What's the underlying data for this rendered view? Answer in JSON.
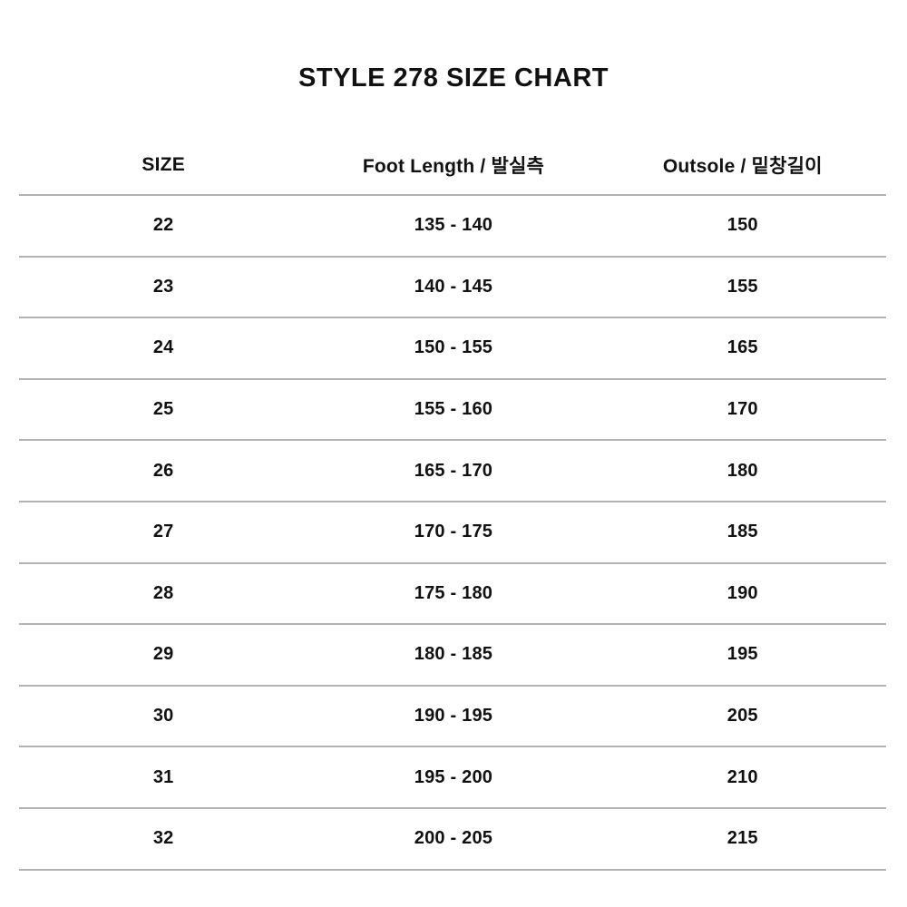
{
  "page": {
    "title": "STYLE 278 SIZE CHART",
    "background_color": "#ffffff",
    "text_color": "#111111",
    "divider_color": "#b3b3b3"
  },
  "chart_data": {
    "type": "table",
    "title": "STYLE 278 SIZE CHART",
    "columns": [
      "SIZE",
      "Foot Length / 발실측",
      "Outsole / 밑창길이"
    ],
    "rows": [
      [
        "22",
        "135 - 140",
        "150"
      ],
      [
        "23",
        "140 - 145",
        "155"
      ],
      [
        "24",
        "150 - 155",
        "165"
      ],
      [
        "25",
        "155 - 160",
        "170"
      ],
      [
        "26",
        "165 - 170",
        "180"
      ],
      [
        "27",
        "170 - 175",
        "185"
      ],
      [
        "28",
        "175 - 180",
        "190"
      ],
      [
        "29",
        "180 - 185",
        "195"
      ],
      [
        "30",
        "190 - 195",
        "205"
      ],
      [
        "31",
        "195 - 200",
        "210"
      ],
      [
        "32",
        "200 - 205",
        "215"
      ]
    ],
    "layout": {
      "grid": "horizontal-dividers-only",
      "alignment": "center"
    }
  }
}
